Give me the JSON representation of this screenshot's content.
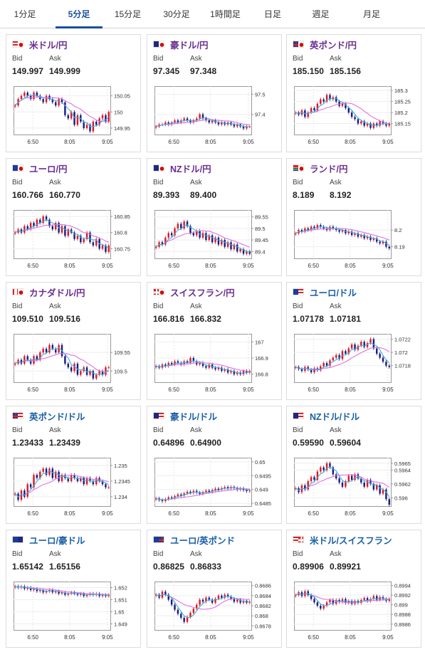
{
  "tabs": [
    {
      "label": "1分足",
      "active": false
    },
    {
      "label": "5分足",
      "active": true
    },
    {
      "label": "15分足",
      "active": false
    },
    {
      "label": "30分足",
      "active": false
    },
    {
      "label": "1時間足",
      "active": false
    },
    {
      "label": "日足",
      "active": false
    },
    {
      "label": "週足",
      "active": false
    },
    {
      "label": "月足",
      "active": false
    }
  ],
  "labels": {
    "bid": "Bid",
    "ask": "Ask"
  },
  "colors": {
    "up": "#e8141e",
    "down": "#1a1a80",
    "ma_long": "#e070e0",
    "ma_short": "#3ab0e0",
    "yen_pair": "#6a2c91",
    "dollar_pair": "#1a5fa8"
  },
  "cards": [
    {
      "pair": "米ドル/円",
      "kind": "yen",
      "flag": [
        "us",
        "jp"
      ],
      "bid": "149.997",
      "ask": "149.999",
      "chart_data": {
        "type": "candlestick",
        "x_ticks": [
          "6:50",
          "8:05",
          "9:05"
        ],
        "y_ticks": [
          "150.05",
          "150",
          "149.95"
        ],
        "ylim": [
          149.93,
          150.08
        ],
        "close": [
          150.02,
          150.04,
          150.05,
          150.06,
          150.05,
          150.04,
          150.06,
          150.05,
          150.04,
          150.03,
          150.05,
          150.04,
          150.03,
          150.02,
          150.04,
          150.03,
          149.99,
          149.98,
          150.0,
          149.96,
          149.99,
          149.97,
          149.95,
          149.96,
          149.94,
          149.97,
          149.96,
          149.98,
          149.99,
          149.97,
          150.0
        ]
      }
    },
    {
      "pair": "豪ドル/円",
      "kind": "yen",
      "flag": [
        "au",
        "jp"
      ],
      "bid": "97.345",
      "ask": "97.348",
      "chart_data": {
        "type": "candlestick",
        "x_ticks": [
          "6:50",
          "8:05",
          "9:05"
        ],
        "y_ticks": [
          "97.5",
          "97.4"
        ],
        "ylim": [
          97.3,
          97.54
        ],
        "close": [
          97.34,
          97.35,
          97.35,
          97.36,
          97.35,
          97.36,
          97.37,
          97.36,
          97.37,
          97.38,
          97.37,
          97.36,
          97.37,
          97.38,
          97.4,
          97.38,
          97.37,
          97.36,
          97.37,
          97.36,
          97.35,
          97.36,
          97.35,
          97.36,
          97.35,
          97.34,
          97.35,
          97.34,
          97.33,
          97.34,
          97.34
        ]
      }
    },
    {
      "pair": "英ポンド/円",
      "kind": "yen",
      "flag": [
        "gb",
        "jp"
      ],
      "bid": "185.150",
      "ask": "185.156",
      "chart_data": {
        "type": "candlestick",
        "x_ticks": [
          "6:50",
          "8:05",
          "9:05"
        ],
        "y_ticks": [
          "185.3",
          "185.25",
          "185.2",
          "185.15"
        ],
        "ylim": [
          185.1,
          185.32
        ],
        "close": [
          185.2,
          185.19,
          185.21,
          185.18,
          185.2,
          185.22,
          185.21,
          185.24,
          185.26,
          185.25,
          185.28,
          185.26,
          185.27,
          185.25,
          185.23,
          185.24,
          185.22,
          185.2,
          185.18,
          185.17,
          185.15,
          185.16,
          185.14,
          185.15,
          185.13,
          185.15,
          185.14,
          185.16,
          185.15,
          185.14,
          185.15
        ]
      }
    },
    {
      "pair": "ユーロ/円",
      "kind": "yen",
      "flag": [
        "eu",
        "jp"
      ],
      "bid": "160.766",
      "ask": "160.770",
      "chart_data": {
        "type": "candlestick",
        "x_ticks": [
          "6:50",
          "8:05",
          "9:05"
        ],
        "y_ticks": [
          "160.85",
          "160.8",
          "160.75"
        ],
        "ylim": [
          160.72,
          160.87
        ],
        "close": [
          160.8,
          160.81,
          160.8,
          160.82,
          160.81,
          160.83,
          160.82,
          160.84,
          160.83,
          160.85,
          160.84,
          160.82,
          160.81,
          160.83,
          160.8,
          160.82,
          160.79,
          160.81,
          160.8,
          160.78,
          160.79,
          160.77,
          160.78,
          160.8,
          160.77,
          160.76,
          160.78,
          160.75,
          160.76,
          160.74,
          160.76
        ]
      }
    },
    {
      "pair": "NZドル/円",
      "kind": "yen",
      "flag": [
        "nz",
        "jp"
      ],
      "bid": "89.393",
      "ask": "89.400",
      "chart_data": {
        "type": "candlestick",
        "x_ticks": [
          "6:50",
          "8:05",
          "9:05"
        ],
        "y_ticks": [
          "89.55",
          "89.5",
          "89.45",
          "89.4"
        ],
        "ylim": [
          89.37,
          89.58
        ],
        "close": [
          89.42,
          89.44,
          89.43,
          89.46,
          89.48,
          89.47,
          89.5,
          89.52,
          89.5,
          89.53,
          89.51,
          89.48,
          89.47,
          89.49,
          89.46,
          89.48,
          89.45,
          89.47,
          89.44,
          89.46,
          89.43,
          89.45,
          89.42,
          89.44,
          89.41,
          89.43,
          89.4,
          89.41,
          89.39,
          89.4,
          89.39
        ]
      }
    },
    {
      "pair": "ランド/円",
      "kind": "yen",
      "flag": [
        "za",
        "jp"
      ],
      "bid": "8.189",
      "ask": "8.192",
      "chart_data": {
        "type": "candlestick",
        "x_ticks": [
          "6:50",
          "8:05",
          "9:05"
        ],
        "y_ticks": [
          "8.2",
          "8.19"
        ],
        "ylim": [
          8.183,
          8.212
        ],
        "close": [
          8.198,
          8.2,
          8.199,
          8.201,
          8.2,
          8.202,
          8.201,
          8.203,
          8.202,
          8.201,
          8.2,
          8.202,
          8.201,
          8.2,
          8.199,
          8.2,
          8.198,
          8.199,
          8.197,
          8.198,
          8.196,
          8.197,
          8.195,
          8.196,
          8.194,
          8.195,
          8.193,
          8.192,
          8.193,
          8.19,
          8.189
        ]
      }
    },
    {
      "pair": "カナダドル/円",
      "kind": "yen",
      "flag": [
        "ca",
        "jp"
      ],
      "bid": "109.510",
      "ask": "109.516",
      "chart_data": {
        "type": "candlestick",
        "x_ticks": [
          "6:50",
          "8:05",
          "9:05"
        ],
        "y_ticks": [
          "109.55",
          "109.5"
        ],
        "ylim": [
          109.47,
          109.6
        ],
        "close": [
          109.52,
          109.53,
          109.52,
          109.54,
          109.53,
          109.52,
          109.54,
          109.53,
          109.55,
          109.56,
          109.55,
          109.57,
          109.56,
          109.55,
          109.57,
          109.54,
          109.52,
          109.51,
          109.5,
          109.52,
          109.49,
          109.5,
          109.51,
          109.49,
          109.5,
          109.48,
          109.49,
          109.5,
          109.49,
          109.51,
          109.51
        ]
      }
    },
    {
      "pair": "スイスフラン/円",
      "kind": "yen",
      "flag": [
        "ch",
        "jp"
      ],
      "bid": "166.816",
      "ask": "166.832",
      "chart_data": {
        "type": "candlestick",
        "x_ticks": [
          "6:50",
          "8:05",
          "9:05"
        ],
        "y_ticks": [
          "167",
          "166.9",
          "166.8"
        ],
        "ylim": [
          166.75,
          167.05
        ],
        "close": [
          166.85,
          166.84,
          166.86,
          166.85,
          166.87,
          166.86,
          166.88,
          166.87,
          166.86,
          166.88,
          166.87,
          166.9,
          166.88,
          166.86,
          166.87,
          166.85,
          166.84,
          166.86,
          166.84,
          166.83,
          166.84,
          166.82,
          166.83,
          166.81,
          166.82,
          166.8,
          166.81,
          166.8,
          166.82,
          166.81,
          166.82
        ]
      }
    },
    {
      "pair": "ユーロ/ドル",
      "kind": "dollar",
      "flag": [
        "eu",
        "us"
      ],
      "bid": "1.07178",
      "ask": "1.07181",
      "chart_data": {
        "type": "candlestick",
        "x_ticks": [
          "6:50",
          "8:05",
          "9:05"
        ],
        "y_ticks": [
          "1.0722",
          "1.072",
          "1.0718"
        ],
        "ylim": [
          1.07155,
          1.07228
        ],
        "close": [
          1.07178,
          1.07175,
          1.07172,
          1.07178,
          1.07174,
          1.0717,
          1.07176,
          1.07173,
          1.07179,
          1.07184,
          1.0718,
          1.07188,
          1.07192,
          1.07196,
          1.0719,
          1.07202,
          1.07198,
          1.07206,
          1.07212,
          1.07204,
          1.0721,
          1.07216,
          1.07208,
          1.07214,
          1.0722,
          1.07206,
          1.07198,
          1.07192,
          1.07186,
          1.0718,
          1.07178
        ]
      }
    },
    {
      "pair": "英ポンド/ドル",
      "kind": "dollar",
      "flag": [
        "gb",
        "us"
      ],
      "bid": "1.23433",
      "ask": "1.23439",
      "chart_data": {
        "type": "candlestick",
        "x_ticks": [
          "6:50",
          "8:05",
          "9:05"
        ],
        "y_ticks": [
          "1.235",
          "1.2345",
          "1.234"
        ],
        "ylim": [
          1.2337,
          1.23525
        ],
        "close": [
          1.2341,
          1.2339,
          1.2342,
          1.234,
          1.2344,
          1.2343,
          1.2347,
          1.2346,
          1.2348,
          1.2349,
          1.2347,
          1.2349,
          1.2346,
          1.2348,
          1.2345,
          1.2347,
          1.2346,
          1.2345,
          1.2347,
          1.2346,
          1.2345,
          1.2346,
          1.2344,
          1.2346,
          1.2345,
          1.2344,
          1.2346,
          1.2345,
          1.2344,
          1.2343,
          1.2343
        ]
      }
    },
    {
      "pair": "豪ドル/ドル",
      "kind": "dollar",
      "flag": [
        "au",
        "us"
      ],
      "bid": "0.64896",
      "ask": "0.64900",
      "chart_data": {
        "type": "candlestick",
        "x_ticks": [
          "6:50",
          "8:05",
          "9:05"
        ],
        "y_ticks": [
          "0.65",
          "0.6495",
          "0.649",
          "0.6485"
        ],
        "ylim": [
          0.6484,
          0.65015
        ],
        "close": [
          0.64868,
          0.64862,
          0.64858,
          0.64865,
          0.64872,
          0.64869,
          0.64876,
          0.64882,
          0.64878,
          0.64886,
          0.64892,
          0.64888,
          0.64895,
          0.64889,
          0.64884,
          0.6489,
          0.64896,
          0.64891,
          0.64898,
          0.64903,
          0.64899,
          0.64905,
          0.64909,
          0.64904,
          0.64909,
          0.64905,
          0.64899,
          0.64904,
          0.64898,
          0.64894,
          0.64896
        ]
      }
    },
    {
      "pair": "NZドル/ドル",
      "kind": "dollar",
      "flag": [
        "nz",
        "us"
      ],
      "bid": "0.59590",
      "ask": "0.59604",
      "chart_data": {
        "type": "candlestick",
        "x_ticks": [
          "6:50",
          "8:05",
          "9:05"
        ],
        "y_ticks": [
          "0.5965",
          "0.5964",
          "0.5962",
          "0.596"
        ],
        "ylim": [
          0.59588,
          0.59658
        ],
        "close": [
          0.59614,
          0.59608,
          0.59618,
          0.59612,
          0.59624,
          0.5963,
          0.59626,
          0.59638,
          0.59644,
          0.5964,
          0.5965,
          0.59644,
          0.59634,
          0.59628,
          0.59622,
          0.59616,
          0.59624,
          0.59632,
          0.59626,
          0.59634,
          0.59628,
          0.59622,
          0.59616,
          0.59626,
          0.5962,
          0.59612,
          0.59618,
          0.59606,
          0.59612,
          0.59598,
          0.5959
        ]
      }
    },
    {
      "pair": "ユーロ/豪ドル",
      "kind": "dollar",
      "flag": [
        "eu",
        "au"
      ],
      "bid": "1.65142",
      "ask": "1.65156",
      "chart_data": {
        "type": "candlestick",
        "x_ticks": [
          "6:50",
          "8:05",
          "9:05"
        ],
        "y_ticks": [
          "1.652",
          "1.651",
          "1.65",
          "1.649"
        ],
        "ylim": [
          1.6485,
          1.6525
        ],
        "close": [
          1.6521,
          1.652,
          1.6521,
          1.6519,
          1.652,
          1.6518,
          1.6519,
          1.6517,
          1.6518,
          1.6516,
          1.6517,
          1.6518,
          1.6516,
          1.6517,
          1.6515,
          1.6516,
          1.6514,
          1.6515,
          1.6516,
          1.6515,
          1.6514,
          1.6515,
          1.6513,
          1.6514,
          1.6515,
          1.6514,
          1.6515,
          1.6513,
          1.6514,
          1.6513,
          1.6514
        ]
      }
    },
    {
      "pair": "ユーロ/英ポンド",
      "kind": "dollar",
      "flag": [
        "eu",
        "gb"
      ],
      "bid": "0.86825",
      "ask": "0.86833",
      "chart_data": {
        "type": "candlestick",
        "x_ticks": [
          "6:50",
          "8:05",
          "9:05"
        ],
        "y_ticks": [
          "0.8686",
          "0.8684",
          "0.8682",
          "0.868",
          "0.8678"
        ],
        "ylim": [
          0.86772,
          0.86868
        ],
        "close": [
          0.86842,
          0.86836,
          0.86848,
          0.86842,
          0.86832,
          0.86822,
          0.86812,
          0.86804,
          0.86796,
          0.86788,
          0.86798,
          0.86806,
          0.86814,
          0.86822,
          0.86832,
          0.86828,
          0.86836,
          0.86832,
          0.86826,
          0.86834,
          0.8684,
          0.86836,
          0.86842,
          0.86838,
          0.86834,
          0.86828,
          0.86832,
          0.86826,
          0.8683,
          0.86826,
          0.86828
        ]
      }
    },
    {
      "pair": "米ドル/スイスフラン",
      "kind": "dollar",
      "flag": [
        "us",
        "ch"
      ],
      "bid": "0.89906",
      "ask": "0.89921",
      "chart_data": {
        "type": "candlestick",
        "x_ticks": [
          "6:50",
          "8:05",
          "9:05"
        ],
        "y_ticks": [
          "0.8994",
          "0.8992",
          "0.899",
          "0.8988",
          "0.8986"
        ],
        "ylim": [
          0.89848,
          0.89948
        ],
        "close": [
          0.8992,
          0.89926,
          0.89918,
          0.89928,
          0.8992,
          0.89912,
          0.89905,
          0.89898,
          0.89892,
          0.89898,
          0.89905,
          0.8991,
          0.89902,
          0.8991,
          0.89906,
          0.89912,
          0.89904,
          0.89908,
          0.89902,
          0.89908,
          0.89904,
          0.8991,
          0.89914,
          0.89908,
          0.89912,
          0.89918,
          0.8991,
          0.89916,
          0.89912,
          0.89908,
          0.89912
        ]
      }
    }
  ]
}
